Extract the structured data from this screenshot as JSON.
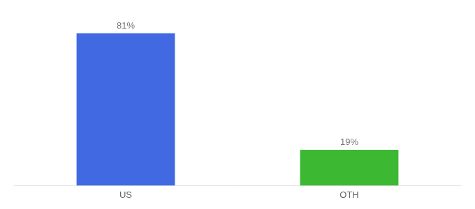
{
  "chart_data": {
    "type": "bar",
    "categories": [
      "US",
      "OTH"
    ],
    "values": [
      81,
      19
    ],
    "colors": [
      "#4169e1",
      "#3cb832"
    ],
    "data_labels": true,
    "value_labels": [
      "81%",
      "19%"
    ],
    "ylim": [
      0,
      95
    ],
    "grid": false,
    "tick_labels": "x"
  }
}
